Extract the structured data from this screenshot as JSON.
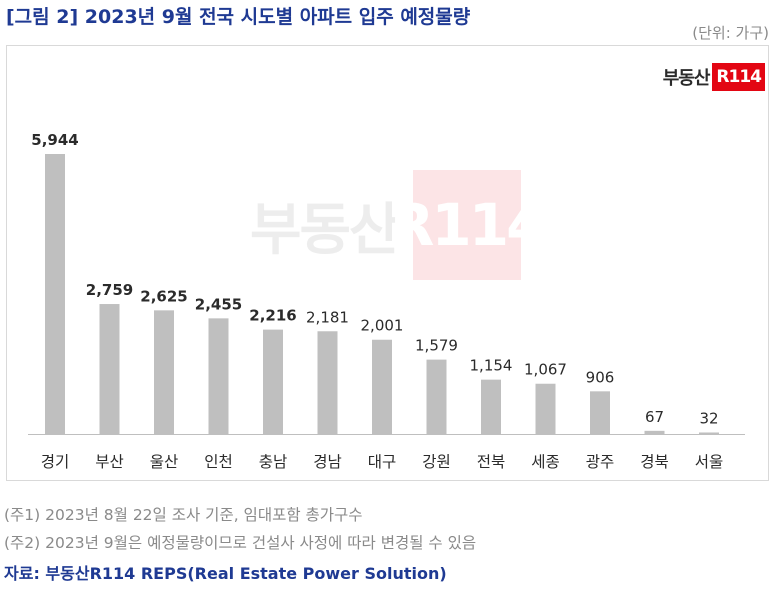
{
  "header": {
    "title": "[그림 2] 2023년 9월 전국 시도별 아파트 입주 예정물량",
    "unit": "(단위: 가구)"
  },
  "logo": {
    "text": "부동산",
    "badge": "R114"
  },
  "watermark": {
    "text": "부동산",
    "badge": "R114"
  },
  "chart_data": {
    "type": "bar",
    "categories": [
      "경기",
      "부산",
      "울산",
      "인천",
      "충남",
      "경남",
      "대구",
      "강원",
      "전북",
      "세종",
      "광주",
      "경북",
      "서울"
    ],
    "values": [
      5944,
      2759,
      2625,
      2455,
      2216,
      2181,
      2001,
      1579,
      1154,
      1067,
      906,
      67,
      32
    ],
    "value_labels": [
      "5,944",
      "2,759",
      "2,625",
      "2,455",
      "2,216",
      "2,181",
      "2,001",
      "1,579",
      "1,154",
      "1,067",
      "906",
      "67",
      "32"
    ],
    "bold_labels": [
      true,
      true,
      true,
      true,
      true,
      false,
      false,
      false,
      false,
      false,
      false,
      false,
      false
    ],
    "bar_color": "#bfbfbf",
    "ylim": [
      0,
      5944
    ],
    "grid": false,
    "legend": "none"
  },
  "notes": [
    "(주1) 2023년 8월 22일 조사 기준, 임대포함 총가구수",
    "(주2) 2023년 9월은 예정물량이므로 건설사 사정에 따라 변경될 수 있음"
  ],
  "source": "자료: 부동산R114 REPS(Real Estate Power Solution)"
}
